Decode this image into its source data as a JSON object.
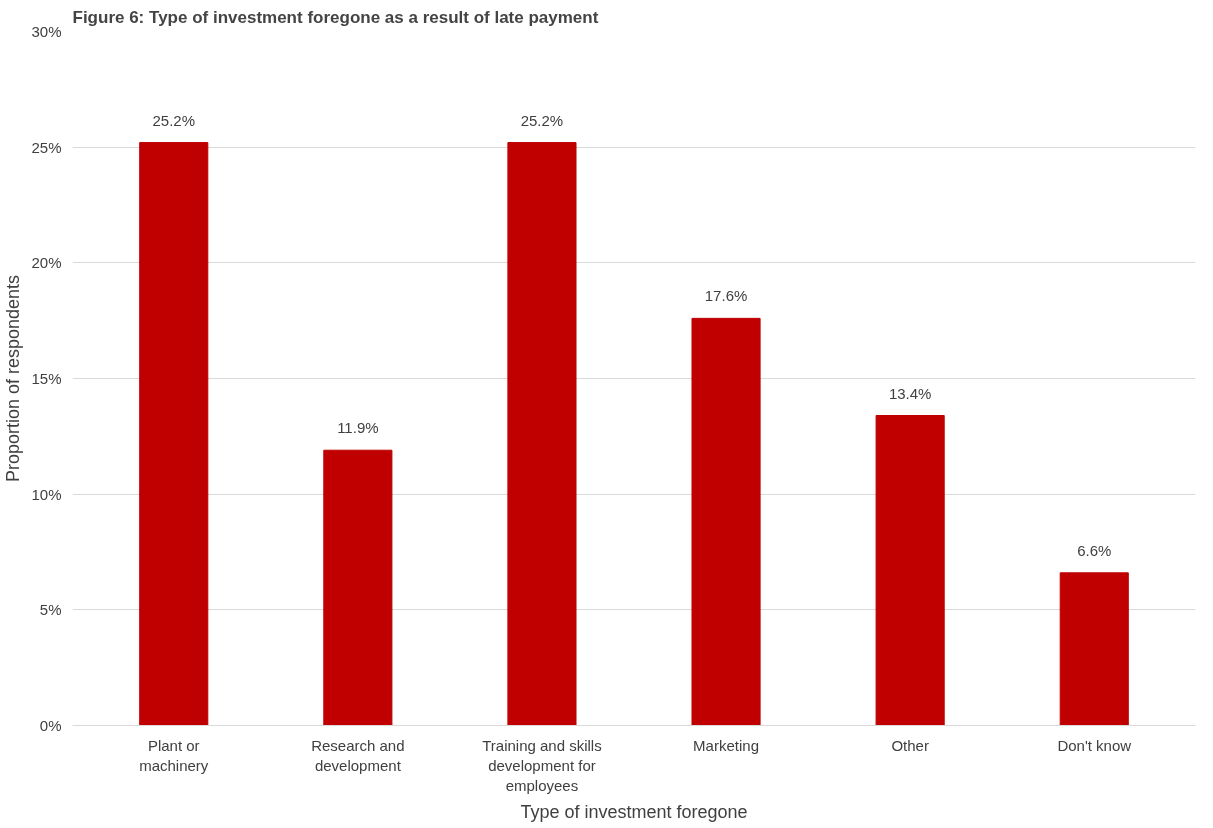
{
  "chart_data": {
    "type": "bar",
    "title": "Figure 6: Type of investment foregone as a result of late payment",
    "xlabel": "Type of investment foregone",
    "ylabel": "Proportion of respondents",
    "categories": [
      "Plant or\nmachinery",
      "Research and\ndevelopment",
      "Training and skills\ndevelopment for\nemployees",
      "Marketing",
      "Other",
      "Don't know"
    ],
    "values": [
      25.2,
      11.9,
      25.2,
      17.6,
      13.4,
      6.6
    ],
    "color": "#c00000",
    "value_labels": [
      "25.2%",
      "11.9%",
      "25.2%",
      "17.6%",
      "13.4%",
      "6.6%"
    ],
    "ylim": [
      0,
      30
    ],
    "yticks": [
      {
        "value": 0,
        "label": "0%"
      },
      {
        "value": 5,
        "label": "5%"
      },
      {
        "value": 10,
        "label": "10%"
      },
      {
        "value": 15,
        "label": "15%"
      },
      {
        "value": 20,
        "label": "20%"
      },
      {
        "value": 25,
        "label": "25%"
      },
      {
        "value": 30,
        "label": "30%"
      }
    ],
    "grid": "y"
  }
}
